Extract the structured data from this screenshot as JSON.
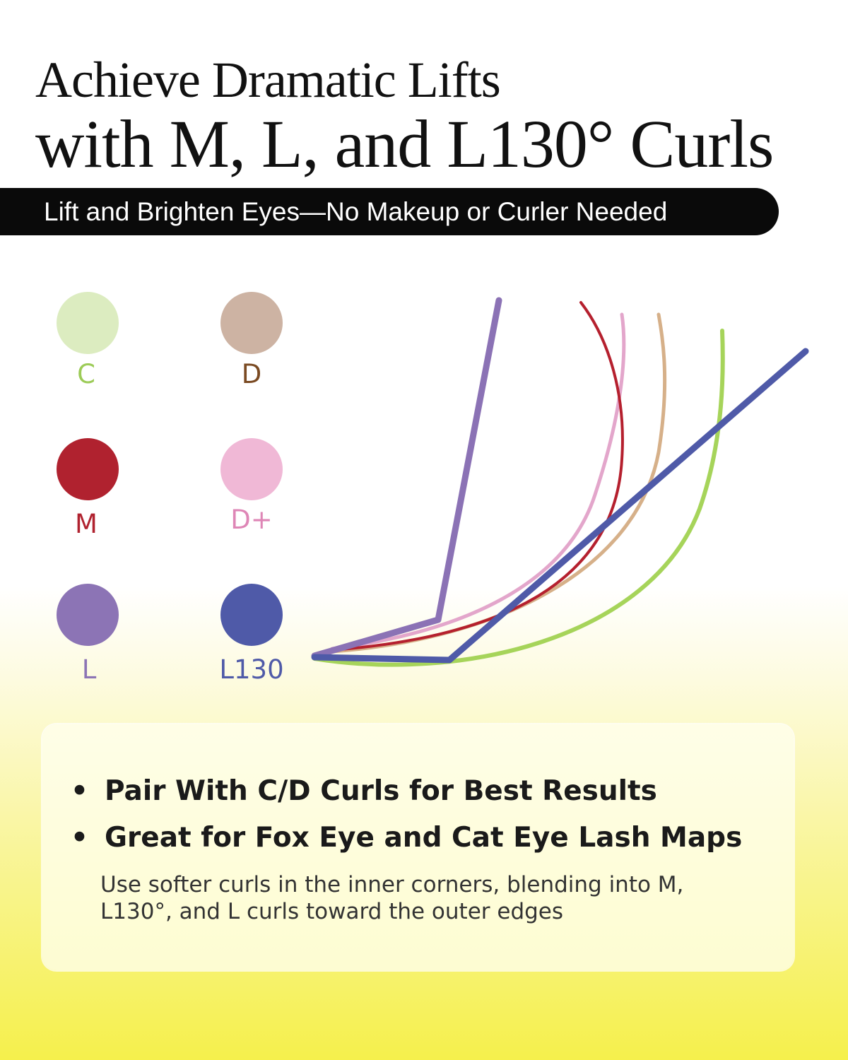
{
  "header": {
    "title_line1": "Achieve Dramatic Lifts",
    "title_line2": "with M, L, and L130° Curls",
    "banner": "Lift and Brighten Eyes—No Makeup or Curler Needed"
  },
  "legend": [
    {
      "label": "C",
      "swatch": "#dcecc0",
      "text_color": "#9ccb57"
    },
    {
      "label": "D",
      "swatch": "#cdb3a3",
      "text_color": "#7a4a22"
    },
    {
      "label": "M",
      "swatch": "#b0222f",
      "text_color": "#b0222f"
    },
    {
      "label": "D+",
      "swatch": "#f0b8d6",
      "text_color": "#de86b6"
    },
    {
      "label": "L",
      "swatch": "#8c74b5",
      "text_color": "#8c74b5"
    },
    {
      "label": "L130",
      "swatch": "#4f5aa8",
      "text_color": "#4f5aa8"
    }
  ],
  "curve_colors": {
    "C": "#a6d45a",
    "D": "#d6b089",
    "M": "#b5202e",
    "D+": "#e3a6cb",
    "L": "#8b72b5",
    "L130": "#4f5aa8"
  },
  "card": {
    "bullets": [
      "Pair With C/D Curls for Best Results",
      "Great for Fox Eye and Cat Eye Lash Maps"
    ],
    "bullet_symbol": "•",
    "note": "Use softer curls in the inner corners, blending into M, L130°, and L curls toward the outer edges"
  }
}
